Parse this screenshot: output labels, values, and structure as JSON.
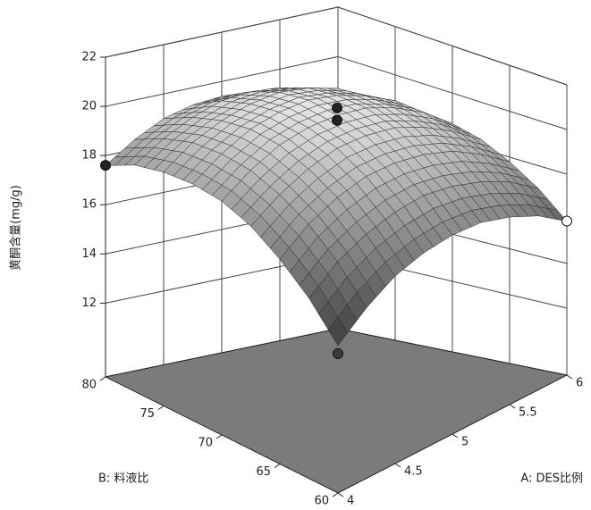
{
  "chart_data": {
    "type": "surface3d",
    "x_label": "A: DES比例",
    "y_label": "B: 料液比",
    "z_label": "黄酮含量(mg/g)",
    "xlim": [
      4,
      6
    ],
    "xticks": [
      4,
      4.5,
      5,
      5.5,
      6
    ],
    "ylim": [
      60,
      80
    ],
    "yticks": [
      60,
      65,
      70,
      75,
      80
    ],
    "zlim": [
      9,
      22
    ],
    "zticks": [
      12,
      14,
      16,
      18,
      20,
      22
    ],
    "x": [
      4,
      4.25,
      4.5,
      4.75,
      5,
      5.25,
      5.5,
      5.75,
      6
    ],
    "y": [
      60,
      62.5,
      65,
      67.5,
      70,
      72.5,
      75,
      77.5,
      80
    ],
    "z": [
      [
        14.5,
        15.5,
        16.3,
        16.8,
        17.1,
        17.2,
        17.0,
        16.6,
        15.9
      ],
      [
        15.8,
        16.8,
        17.5,
        18.0,
        18.3,
        18.3,
        18.1,
        17.7,
        17.0
      ],
      [
        16.8,
        17.8,
        18.5,
        19.0,
        19.2,
        19.2,
        19.0,
        18.5,
        17.8
      ],
      [
        17.6,
        18.5,
        19.2,
        19.7,
        19.9,
        19.9,
        19.6,
        19.1,
        18.4
      ],
      [
        18.1,
        19.0,
        19.7,
        20.1,
        20.3,
        20.3,
        20.0,
        19.5,
        18.7
      ],
      [
        18.3,
        19.2,
        19.9,
        20.3,
        20.5,
        20.4,
        20.1,
        19.6,
        18.8
      ],
      [
        18.3,
        19.2,
        19.8,
        20.2,
        20.4,
        20.3,
        20.0,
        19.4,
        18.6
      ],
      [
        18.1,
        18.9,
        19.5,
        19.9,
        20.0,
        19.9,
        19.6,
        19.0,
        18.2
      ],
      [
        17.6,
        18.4,
        19.0,
        19.3,
        19.4,
        19.3,
        19.0,
        18.3,
        17.5
      ]
    ],
    "points": {
      "x": [
        4,
        6,
        5,
        5,
        4
      ],
      "y": [
        80,
        60,
        70,
        70,
        60
      ],
      "z": [
        17.6,
        15.9,
        20.6,
        20.1,
        14.2
      ],
      "colors": [
        "#222222",
        "#ffffff",
        "#222222",
        "#222222",
        "#3a3a3a"
      ]
    },
    "floor_color": "#7b7b7b",
    "wall_color": "#ffffff"
  }
}
